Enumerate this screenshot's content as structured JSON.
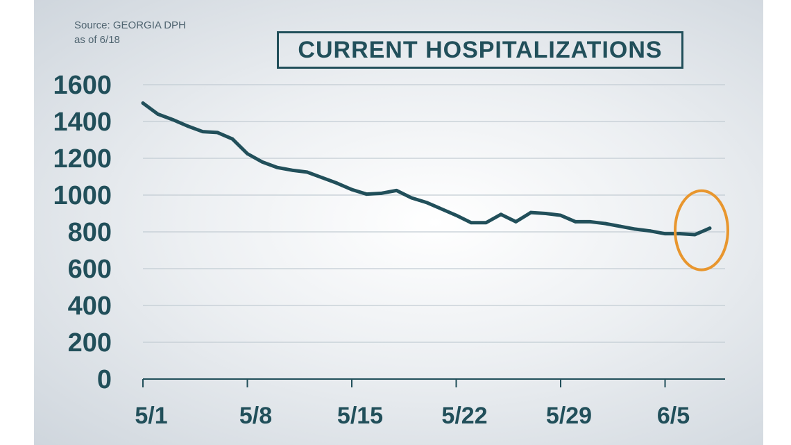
{
  "source": {
    "line1": "Source: GEORGIA DPH",
    "line2": "as of 6/18"
  },
  "title": "CURRENT HOSPITALIZATIONS",
  "colors": {
    "line": "#214f5a",
    "highlight": "#e8962e",
    "grid": "#c2ccd3"
  },
  "chart_data": {
    "type": "line",
    "title": "CURRENT HOSPITALIZATIONS",
    "xlabel": "",
    "ylabel": "",
    "ylim": [
      0,
      1600
    ],
    "yticks": [
      0,
      200,
      400,
      600,
      800,
      1000,
      1200,
      1400,
      1600
    ],
    "xtick_labels": [
      "5/1",
      "5/8",
      "5/15",
      "5/22",
      "5/29",
      "6/5"
    ],
    "grid": true,
    "x": [
      "5/1",
      "5/2",
      "5/3",
      "5/4",
      "5/5",
      "5/6",
      "5/7",
      "5/8",
      "5/9",
      "5/10",
      "5/11",
      "5/12",
      "5/13",
      "5/14",
      "5/15",
      "5/16",
      "5/17",
      "5/18",
      "5/19",
      "5/20",
      "5/21",
      "5/22",
      "5/23",
      "5/24",
      "5/25",
      "5/26",
      "5/27",
      "5/28",
      "5/29",
      "5/30",
      "5/31",
      "6/1",
      "6/2",
      "6/3",
      "6/4",
      "6/5",
      "6/6",
      "6/7",
      "6/8"
    ],
    "series": [
      {
        "values": [
          1500,
          1440,
          1410,
          1375,
          1345,
          1340,
          1305,
          1225,
          1180,
          1150,
          1135,
          1125,
          1095,
          1065,
          1030,
          1005,
          1010,
          1025,
          985,
          960,
          925,
          890,
          850,
          850,
          895,
          855,
          905,
          900,
          890,
          855,
          855,
          845,
          830,
          815,
          805,
          790,
          790,
          785,
          820
        ]
      }
    ],
    "annotation": {
      "type": "circle",
      "target_x": "6/8",
      "target_value": 820
    }
  }
}
